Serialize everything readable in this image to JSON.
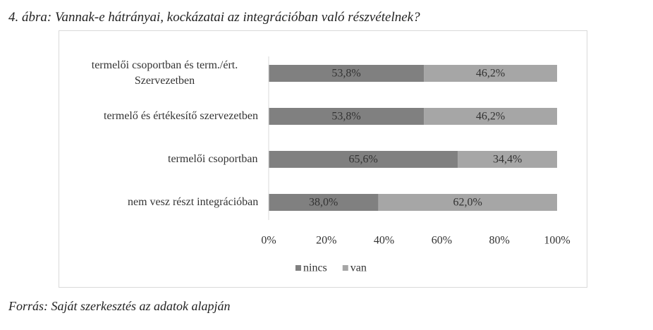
{
  "chart_data": {
    "type": "bar",
    "title": "4. ábra: Vannak-e hátrányai, kockázatai az integrációban való részvételnek?",
    "source": "Forrás: Saját szerkesztés az adatok alapján",
    "orientation": "horizontal",
    "stacked": true,
    "categories": [
      "termelői csoportban és term./ért. Szervezetben",
      "termelő és értékesítő szervezetben",
      "termelői csoportban",
      "nem vesz részt integrációban"
    ],
    "series": [
      {
        "name": "nincs",
        "color": "#808080",
        "values": [
          53.8,
          53.8,
          65.6,
          38.0
        ],
        "value_labels": [
          "53,8%",
          "53,8%",
          "65,6%",
          "38,0%"
        ]
      },
      {
        "name": "van",
        "color": "#a6a6a6",
        "values": [
          46.2,
          46.2,
          34.4,
          62.0
        ],
        "value_labels": [
          "46,2%",
          "46,2%",
          "34,4%",
          "62,0%"
        ]
      }
    ],
    "xlim": [
      0,
      100
    ],
    "xticks": [
      {
        "value": 0,
        "label": "0%"
      },
      {
        "value": 20,
        "label": "20%"
      },
      {
        "value": 40,
        "label": "40%"
      },
      {
        "value": 60,
        "label": "60%"
      },
      {
        "value": 80,
        "label": "80%"
      },
      {
        "value": 100,
        "label": "100%"
      }
    ],
    "grid": false,
    "legend": "bottom"
  }
}
